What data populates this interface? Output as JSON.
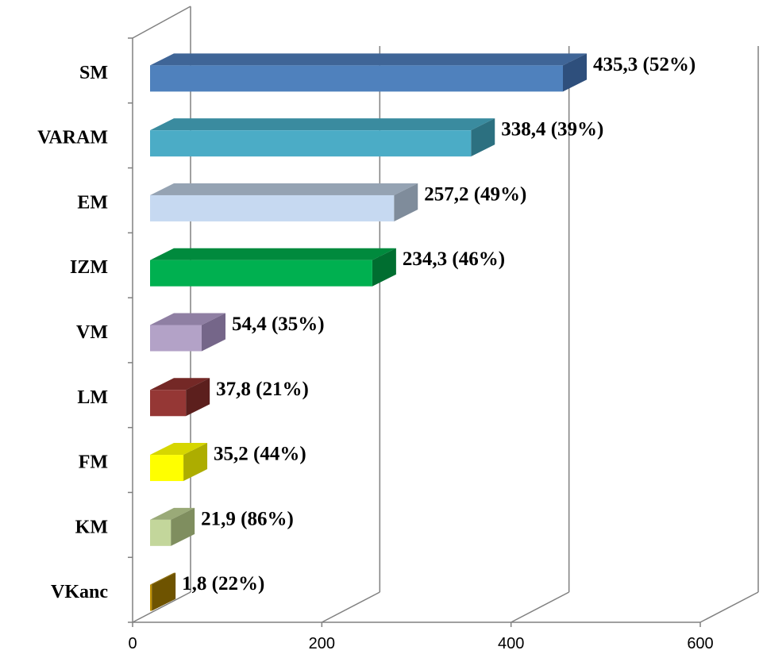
{
  "chart_data": {
    "type": "bar",
    "orientation": "horizontal",
    "three_d": true,
    "categories": [
      "SM",
      "VARAM",
      "EM",
      "IZM",
      "VM",
      "LM",
      "FM",
      "KM",
      "VKanc"
    ],
    "values": [
      435.3,
      338.4,
      257.2,
      234.3,
      54.4,
      37.8,
      35.2,
      21.9,
      1.8
    ],
    "data_labels": [
      "435,3 (52%)",
      "338,4 (39%)",
      "257,2 (49%)",
      "234,3 (46%)",
      "54,4 (35%)",
      "37,8 (21%)",
      "35,2 (44%)",
      "21,9 (86%)",
      "1,8 (22%)"
    ],
    "colors": [
      {
        "front": "#4F81BD",
        "top": "#3F6597",
        "side": "#2E4F7C"
      },
      {
        "front": "#4BACC6",
        "top": "#3A8B9F",
        "side": "#2C7080"
      },
      {
        "front": "#C6D9F1",
        "top": "#95A3B3",
        "side": "#7F8C9B"
      },
      {
        "front": "#00B050",
        "top": "#008A3D",
        "side": "#006E30"
      },
      {
        "front": "#B3A2C7",
        "top": "#8F7FA3",
        "side": "#756689"
      },
      {
        "front": "#953735",
        "top": "#742826",
        "side": "#5C1F1D"
      },
      {
        "front": "#FFFF00",
        "top": "#D6D600",
        "side": "#ADAD00"
      },
      {
        "front": "#C3D69B",
        "top": "#9AAA78",
        "side": "#7F8E5F"
      },
      {
        "front": "#BF8F00",
        "top": "#8C6A00",
        "side": "#6E5300"
      }
    ],
    "xlim": [
      0,
      600
    ],
    "x_ticks": [
      0,
      200,
      400,
      600
    ],
    "x_tick_labels": [
      "0",
      "200",
      "400",
      "600"
    ],
    "gridlines": true,
    "title": "",
    "xlabel": "",
    "ylabel": ""
  }
}
